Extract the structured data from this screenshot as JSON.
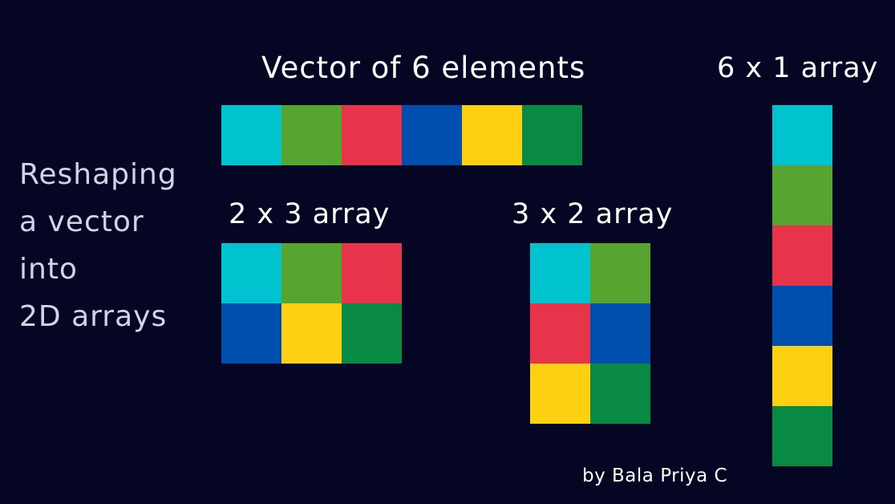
{
  "side_title": [
    "Reshaping",
    "a vector",
    "into",
    "2D arrays"
  ],
  "credit": "by Bala Priya C",
  "colors": [
    "#00c3cf",
    "#55a530",
    "#e8344a",
    "#004eae",
    "#fdd012",
    "#088a42"
  ],
  "arrays": [
    {
      "key": "vector",
      "title": "Vector of 6 elements",
      "rows": 1,
      "cols": 6,
      "cells": [
        0,
        1,
        2,
        3,
        4,
        5
      ]
    },
    {
      "key": "two-by-three",
      "title": "2 x 3 array",
      "rows": 2,
      "cols": 3,
      "cells": [
        0,
        1,
        2,
        3,
        4,
        5
      ]
    },
    {
      "key": "three-by-two",
      "title": "3 x 2 array",
      "rows": 3,
      "cols": 2,
      "cells": [
        0,
        1,
        2,
        3,
        4,
        5
      ]
    },
    {
      "key": "six-by-one",
      "title": "6 x 1 array",
      "rows": 6,
      "cols": 1,
      "cells": [
        0,
        1,
        2,
        3,
        4,
        5
      ]
    }
  ]
}
